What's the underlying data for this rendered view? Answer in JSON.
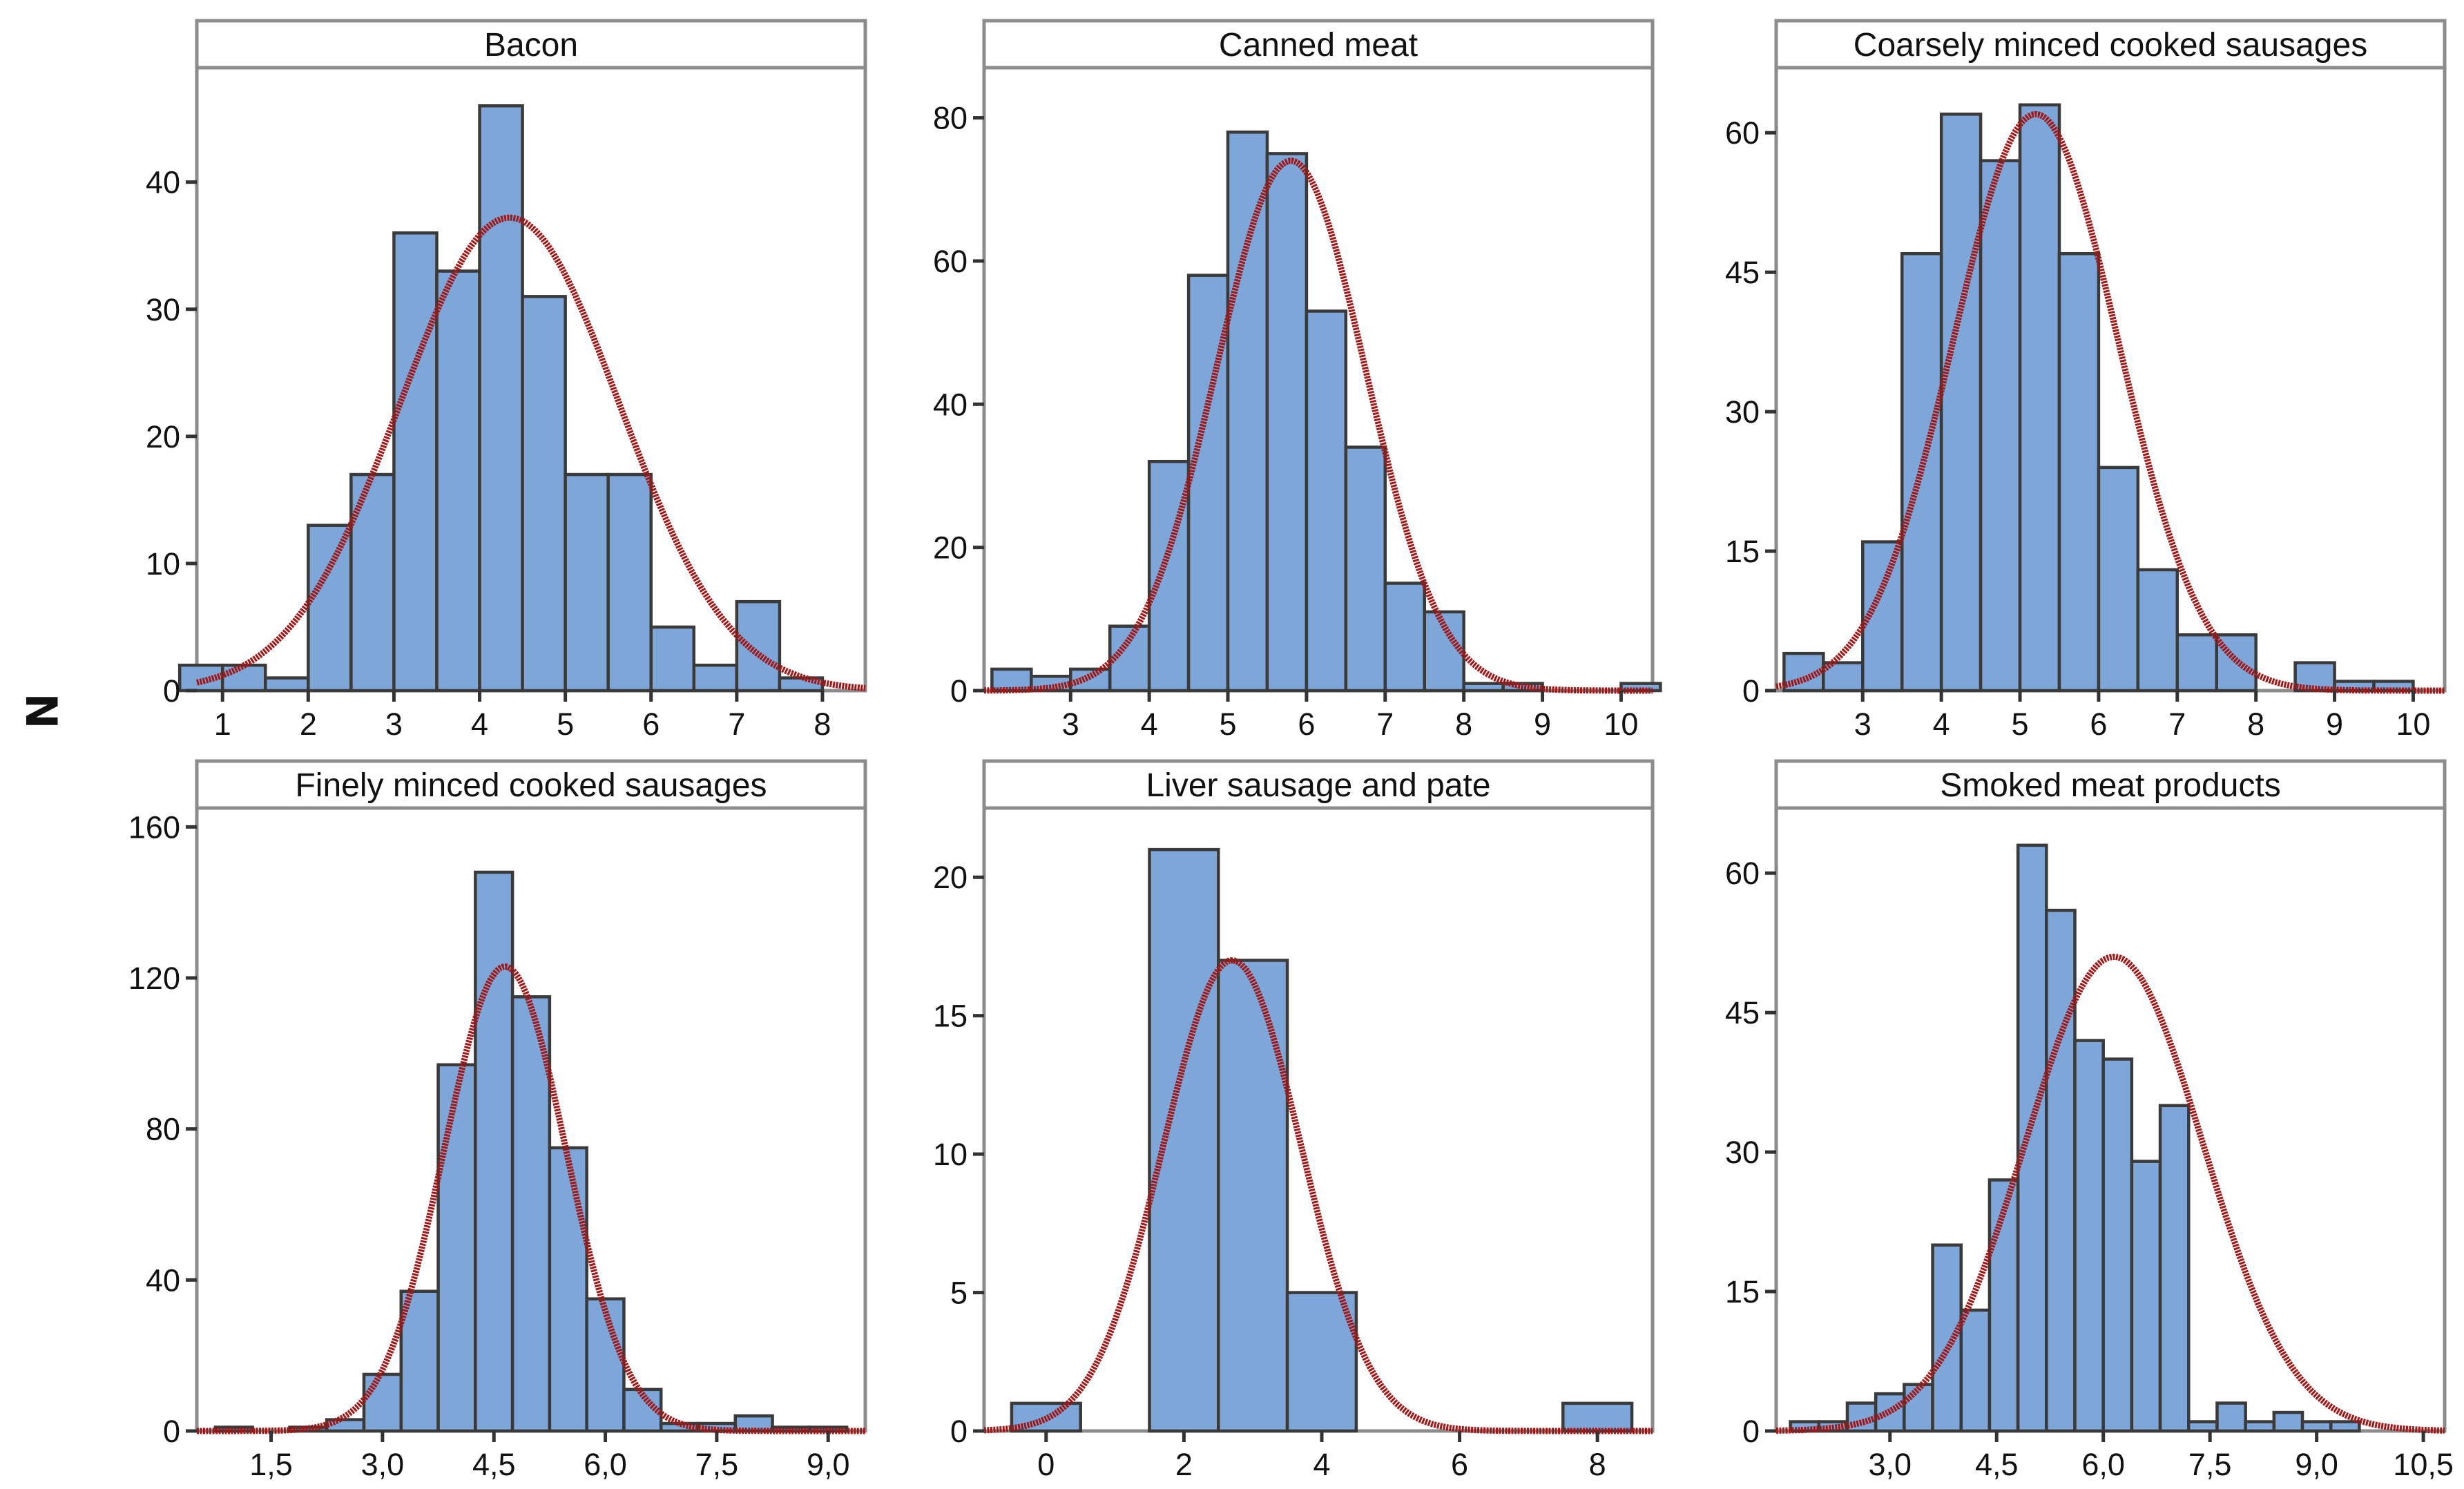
{
  "figure": {
    "ylabel": "N"
  },
  "style": {
    "bar_fill": "#7ea6d8",
    "bar_stroke": "#3a3a3a",
    "curve_color": "#a01818",
    "frame_color": "#8c8c8c"
  },
  "chart_data": [
    {
      "type": "bar",
      "title": "Bacon",
      "x_ticks": [
        1,
        2,
        3,
        4,
        5,
        6,
        7,
        8
      ],
      "x_tick_labels": [
        "1",
        "2",
        "3",
        "4",
        "5",
        "6",
        "7",
        "8"
      ],
      "xlim": [
        0.7,
        8.5
      ],
      "y_ticks": [
        0,
        10,
        20,
        30,
        40
      ],
      "ylim": [
        0,
        49
      ],
      "bin_width": 0.5,
      "bins": [
        [
          0.75,
          2
        ],
        [
          1.25,
          2
        ],
        [
          1.75,
          1
        ],
        [
          2.25,
          13
        ],
        [
          2.75,
          17
        ],
        [
          3.25,
          36
        ],
        [
          3.75,
          33
        ],
        [
          4.25,
          46
        ],
        [
          4.75,
          31
        ],
        [
          5.25,
          17
        ],
        [
          5.75,
          17
        ],
        [
          6.25,
          5
        ],
        [
          6.75,
          2
        ],
        [
          7.25,
          7
        ],
        [
          7.75,
          1
        ]
      ],
      "normal_fit": {
        "mean": 4.35,
        "sd": 1.28,
        "peak": 37.2
      }
    },
    {
      "type": "bar",
      "title": "Canned meat",
      "x_ticks": [
        3,
        4,
        5,
        6,
        7,
        8,
        9,
        10
      ],
      "x_tick_labels": [
        "3",
        "4",
        "5",
        "6",
        "7",
        "8",
        "9",
        "10"
      ],
      "xlim": [
        1.9,
        10.4
      ],
      "y_ticks": [
        0,
        20,
        40,
        60,
        80
      ],
      "ylim": [
        0,
        87
      ],
      "bin_width": 0.5,
      "bins": [
        [
          2.25,
          3
        ],
        [
          2.75,
          2
        ],
        [
          3.25,
          3
        ],
        [
          3.75,
          9
        ],
        [
          4.25,
          32
        ],
        [
          4.75,
          58
        ],
        [
          5.25,
          78
        ],
        [
          5.75,
          75
        ],
        [
          6.25,
          53
        ],
        [
          6.75,
          34
        ],
        [
          7.25,
          15
        ],
        [
          7.75,
          11
        ],
        [
          8.25,
          1
        ],
        [
          8.75,
          1
        ],
        [
          10.25,
          1
        ]
      ],
      "normal_fit": {
        "mean": 5.8,
        "sd": 0.95,
        "peak": 74
      }
    },
    {
      "type": "bar",
      "title": "Coarsely minced cooked sausages",
      "x_ticks": [
        3,
        4,
        5,
        6,
        7,
        8,
        9,
        10
      ],
      "x_tick_labels": [
        "3",
        "4",
        "5",
        "6",
        "7",
        "8",
        "9",
        "10"
      ],
      "xlim": [
        1.9,
        10.4
      ],
      "y_ticks": [
        0,
        15,
        30,
        45,
        60
      ],
      "ylim": [
        0,
        67
      ],
      "bin_width": 0.5,
      "bins": [
        [
          2.25,
          4
        ],
        [
          2.75,
          3
        ],
        [
          3.25,
          16
        ],
        [
          3.75,
          47
        ],
        [
          4.25,
          62
        ],
        [
          4.75,
          57
        ],
        [
          5.25,
          63
        ],
        [
          5.75,
          47
        ],
        [
          6.25,
          24
        ],
        [
          6.75,
          13
        ],
        [
          7.25,
          6
        ],
        [
          7.75,
          6
        ],
        [
          8.75,
          3
        ],
        [
          9.25,
          1
        ],
        [
          9.75,
          1
        ]
      ],
      "normal_fit": {
        "mean": 5.2,
        "sd": 1.05,
        "peak": 62
      }
    },
    {
      "type": "bar",
      "title": "Finely minced cooked sausages",
      "x_ticks": [
        1.5,
        3.0,
        4.5,
        6.0,
        7.5,
        9.0
      ],
      "x_tick_labels": [
        "1,5",
        "3,0",
        "4,5",
        "6,0",
        "7,5",
        "9,0"
      ],
      "xlim": [
        0.5,
        9.5
      ],
      "y_ticks": [
        0,
        40,
        80,
        120,
        160
      ],
      "ylim": [
        0,
        165
      ],
      "bin_width": 0.5,
      "bins": [
        [
          1.0,
          1
        ],
        [
          2.0,
          1
        ],
        [
          2.5,
          3
        ],
        [
          3.0,
          15
        ],
        [
          3.5,
          37
        ],
        [
          4.0,
          97
        ],
        [
          4.5,
          148
        ],
        [
          5.0,
          115
        ],
        [
          5.5,
          75
        ],
        [
          6.0,
          35
        ],
        [
          6.5,
          11
        ],
        [
          7.0,
          2
        ],
        [
          7.5,
          2
        ],
        [
          8.0,
          4
        ],
        [
          8.5,
          1
        ],
        [
          9.0,
          1
        ]
      ],
      "normal_fit": {
        "mean": 4.65,
        "sd": 0.82,
        "peak": 123
      }
    },
    {
      "type": "bar",
      "title": "Liver sausage and pate",
      "x_ticks": [
        0,
        2,
        4,
        6,
        8
      ],
      "x_tick_labels": [
        "0",
        "2",
        "4",
        "6",
        "8"
      ],
      "xlim": [
        -0.9,
        8.8
      ],
      "y_ticks": [
        0,
        5,
        10,
        15,
        20
      ],
      "ylim": [
        0,
        22.5
      ],
      "bin_width": 1,
      "bins": [
        [
          0.0,
          1
        ],
        [
          2.0,
          21
        ],
        [
          3.0,
          17
        ],
        [
          4.0,
          5
        ],
        [
          8.0,
          1
        ]
      ],
      "normal_fit": {
        "mean": 2.7,
        "sd": 1.0,
        "peak": 17
      }
    },
    {
      "type": "bar",
      "title": "Smoked meat products",
      "x_ticks": [
        3.0,
        4.5,
        6.0,
        7.5,
        9.0,
        10.5
      ],
      "x_tick_labels": [
        "3,0",
        "4,5",
        "6,0",
        "7,5",
        "9,0",
        "10,5"
      ],
      "xlim": [
        1.4,
        10.8
      ],
      "y_ticks": [
        0,
        15,
        30,
        45,
        60
      ],
      "ylim": [
        0,
        67
      ],
      "bin_width": 0.4,
      "bins": [
        [
          1.8,
          1
        ],
        [
          2.2,
          1
        ],
        [
          2.6,
          3
        ],
        [
          3.0,
          4
        ],
        [
          3.4,
          5
        ],
        [
          3.8,
          20
        ],
        [
          4.2,
          13
        ],
        [
          4.6,
          27
        ],
        [
          5.0,
          63
        ],
        [
          5.4,
          56
        ],
        [
          5.8,
          42
        ],
        [
          6.2,
          40
        ],
        [
          6.6,
          29
        ],
        [
          7.0,
          35
        ],
        [
          7.4,
          1
        ],
        [
          7.8,
          3
        ],
        [
          8.2,
          1
        ],
        [
          8.6,
          2
        ],
        [
          9.0,
          1
        ],
        [
          9.4,
          1
        ]
      ],
      "normal_fit": {
        "mean": 6.15,
        "sd": 1.25,
        "peak": 51
      }
    }
  ]
}
